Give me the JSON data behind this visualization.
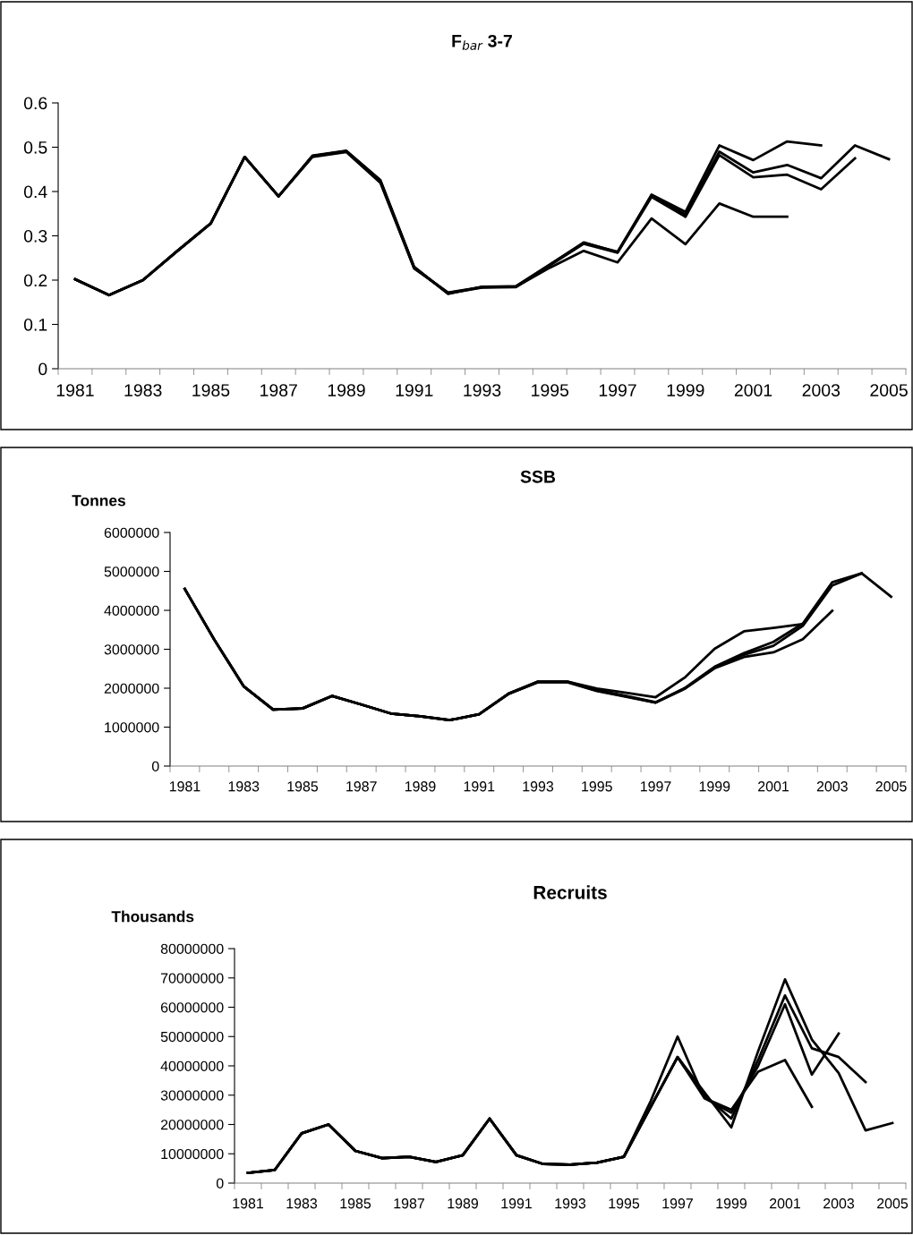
{
  "chart_data": [
    {
      "type": "line",
      "title": "F$_{bar}$ 3-7",
      "categories": [
        "1981",
        null,
        "1983",
        null,
        "1985",
        null,
        "1987",
        null,
        "1989",
        null,
        "1991",
        null,
        "1993",
        null,
        "1995",
        null,
        "1997",
        null,
        "1999",
        null,
        "2001",
        null,
        "2003",
        null,
        "2005"
      ],
      "series": [
        {
          "color": "#000000",
          "values": [
            0.202,
            0.166,
            0.2,
            0.265,
            0.328,
            0.478,
            0.389,
            0.478,
            0.489,
            0.42,
            0.226,
            0.172,
            0.184,
            0.185,
            0.228,
            0.266,
            0.24,
            0.339,
            0.281,
            0.373,
            0.343,
            0.343,
            null,
            null,
            null
          ]
        },
        {
          "color": "#000000",
          "values": [
            0.202,
            0.166,
            0.2,
            0.265,
            0.328,
            0.478,
            0.389,
            0.48,
            0.491,
            0.424,
            0.228,
            0.171,
            0.184,
            0.186,
            0.235,
            0.285,
            0.263,
            0.393,
            0.354,
            0.504,
            0.471,
            0.513,
            0.504,
            null,
            null
          ]
        },
        {
          "color": "#000000",
          "values": [
            0.202,
            0.166,
            0.2,
            0.265,
            0.328,
            0.478,
            0.389,
            0.48,
            0.491,
            0.424,
            0.228,
            0.17,
            0.183,
            0.184,
            0.233,
            0.282,
            0.262,
            0.388,
            0.343,
            0.482,
            0.432,
            0.438,
            0.405,
            0.475,
            null
          ]
        },
        {
          "color": "#000000",
          "values": [
            0.202,
            0.166,
            0.2,
            0.265,
            0.328,
            0.478,
            0.389,
            0.481,
            0.492,
            0.426,
            0.23,
            0.169,
            0.185,
            0.186,
            0.235,
            0.284,
            0.264,
            0.391,
            0.348,
            0.49,
            0.443,
            0.46,
            0.43,
            0.504,
            0.473
          ]
        }
      ],
      "ylim": [
        0,
        0.6
      ],
      "yticks": [
        0,
        0.1,
        0.2,
        0.3,
        0.4,
        0.5,
        0.6
      ]
    },
    {
      "type": "line",
      "title": "SSB",
      "ylabel": "Tonnes",
      "categories": [
        "1981",
        null,
        "1983",
        null,
        "1985",
        null,
        "1987",
        null,
        "1989",
        null,
        "1991",
        null,
        "1993",
        null,
        "1995",
        null,
        "1997",
        null,
        "1999",
        null,
        "2001",
        null,
        "2003",
        null,
        "2005"
      ],
      "series": [
        {
          "color": "#000000",
          "values": [
            4550000,
            3250000,
            2050000,
            1450000,
            1480000,
            1800000,
            1580000,
            1350000,
            1280000,
            1180000,
            1330000,
            1860000,
            2170000,
            2170000,
            1990000,
            1880000,
            1770000,
            2280000,
            3010000,
            3460000,
            3550000,
            3650000,
            null,
            null,
            null
          ]
        },
        {
          "color": "#000000",
          "values": [
            4550000,
            3250000,
            2050000,
            1450000,
            1480000,
            1800000,
            1580000,
            1350000,
            1280000,
            1180000,
            1330000,
            1860000,
            2160000,
            2160000,
            1940000,
            1790000,
            1630000,
            1990000,
            2510000,
            2800000,
            2920000,
            3260000,
            3990000,
            null,
            null
          ]
        },
        {
          "color": "#000000",
          "values": [
            4550000,
            3250000,
            2050000,
            1450000,
            1480000,
            1800000,
            1580000,
            1350000,
            1280000,
            1180000,
            1330000,
            1850000,
            2150000,
            2150000,
            1930000,
            1780000,
            1630000,
            2000000,
            2530000,
            2860000,
            3090000,
            3600000,
            4640000,
            4950000,
            null
          ]
        },
        {
          "color": "#000000",
          "values": [
            4550000,
            3250000,
            2050000,
            1450000,
            1480000,
            1800000,
            1580000,
            1350000,
            1280000,
            1180000,
            1330000,
            1860000,
            2170000,
            2170000,
            1950000,
            1800000,
            1640000,
            2010000,
            2550000,
            2900000,
            3190000,
            3660000,
            4720000,
            4950000,
            4350000
          ]
        }
      ],
      "ylim": [
        0,
        6000000
      ],
      "yticks": [
        0,
        1000000,
        2000000,
        3000000,
        4000000,
        5000000,
        6000000
      ]
    },
    {
      "type": "line",
      "title": "Recruits",
      "ylabel": "Thousands",
      "categories": [
        "1981",
        null,
        "1983",
        null,
        "1985",
        null,
        "1987",
        null,
        "1989",
        null,
        "1991",
        null,
        "1993",
        null,
        "1995",
        null,
        "1997",
        null,
        "1999",
        null,
        "2001",
        null,
        "2003",
        null,
        "2005"
      ],
      "series": [
        {
          "color": "#000000",
          "values": [
            3500000,
            4500000,
            17000000,
            20000000,
            11000000,
            8500000,
            9000000,
            7200000,
            9500000,
            22000000,
            9500000,
            6500000,
            6300000,
            7000000,
            9000000,
            28000000,
            50000000,
            29000000,
            25000000,
            38000000,
            42000000,
            26000000,
            null,
            null,
            null
          ]
        },
        {
          "color": "#000000",
          "values": [
            3500000,
            4500000,
            17000000,
            20000000,
            11000000,
            8500000,
            9000000,
            7200000,
            9500000,
            22000000,
            9500000,
            6500000,
            6300000,
            7000000,
            9000000,
            26000000,
            43000000,
            29000000,
            24000000,
            40000000,
            61000000,
            37000000,
            51000000,
            null,
            null
          ]
        },
        {
          "color": "#000000",
          "values": [
            3500000,
            4500000,
            17000000,
            20000000,
            11000000,
            8500000,
            9000000,
            7200000,
            9500000,
            22000000,
            9500000,
            6500000,
            6300000,
            7000000,
            9000000,
            26000000,
            43000000,
            30000000,
            22000000,
            42000000,
            64000000,
            46000000,
            43000000,
            34500000,
            null
          ]
        },
        {
          "color": "#000000",
          "values": [
            3500000,
            4500000,
            17000000,
            20000000,
            11000000,
            8500000,
            9000000,
            7200000,
            9500000,
            22000000,
            9500000,
            6500000,
            6300000,
            7000000,
            9000000,
            26000000,
            43000000,
            31000000,
            19000000,
            45000000,
            69500000,
            49000000,
            37500000,
            18000000,
            20500000
          ]
        }
      ],
      "ylim": [
        0,
        80000000
      ],
      "yticks": [
        0,
        10000000,
        20000000,
        30000000,
        40000000,
        50000000,
        60000000,
        70000000,
        80000000
      ]
    }
  ]
}
